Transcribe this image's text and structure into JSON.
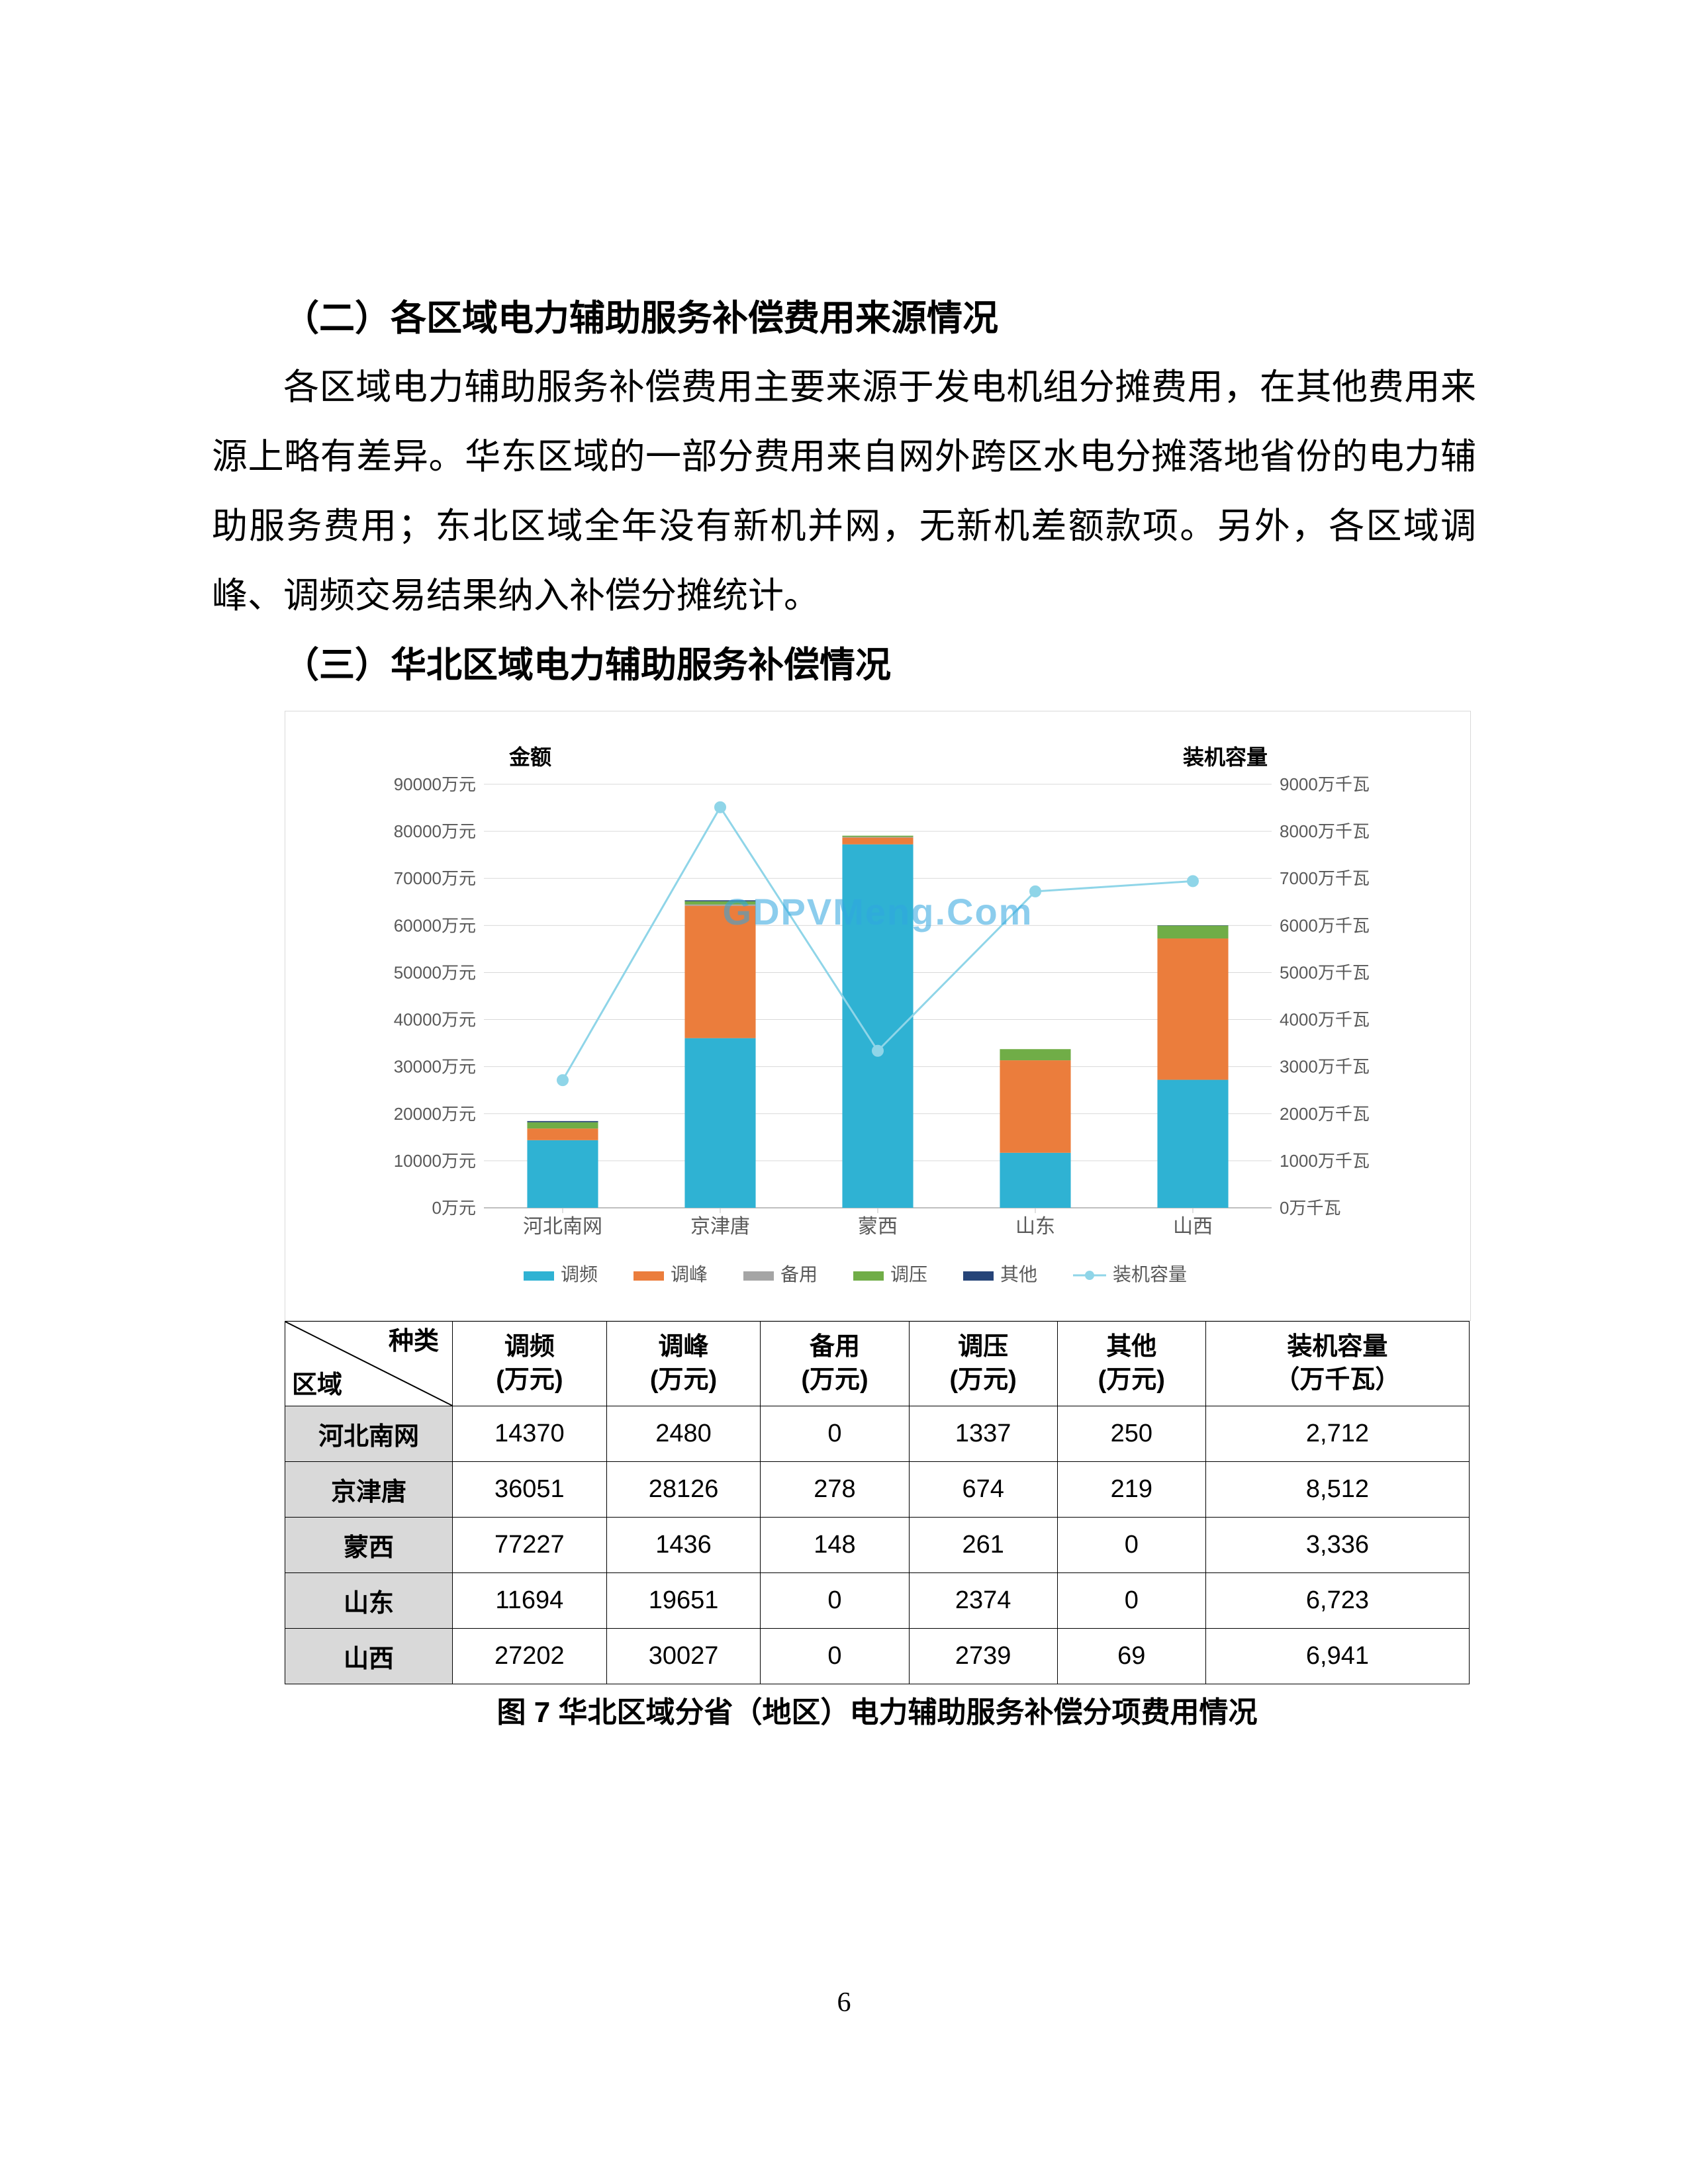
{
  "page": {
    "number": "6"
  },
  "headings": {
    "h2": "（二）各区域电力辅助服务补偿费用来源情况",
    "h3": "（三）华北区域电力辅助服务补偿情况"
  },
  "para": "各区域电力辅助服务补偿费用主要来源于发电机组分摊费用，在其他费用来源上略有差异。华东区域的一部分费用来自网外跨区水电分摊落地省份的电力辅助服务费用；东北区域全年没有新机并网，无新机差额款项。另外，各区域调峰、调频交易结果纳入补偿分摊统计。",
  "watermark": "GDPVMeng.Com",
  "chart": {
    "type": "stacked-bar-with-line",
    "left_axis_title": "金额",
    "right_axis_title": "装机容量",
    "left_axis": {
      "min": 0,
      "max": 90000,
      "step": 10000,
      "unit": "万元",
      "ticks": [
        "0万元",
        "10000万元",
        "20000万元",
        "30000万元",
        "40000万元",
        "50000万元",
        "60000万元",
        "70000万元",
        "80000万元",
        "90000万元"
      ]
    },
    "right_axis": {
      "min": 0,
      "max": 9000,
      "step": 1000,
      "unit": "万千瓦",
      "ticks": [
        "0万千瓦",
        "1000万千瓦",
        "2000万千瓦",
        "3000万千瓦",
        "4000万千瓦",
        "5000万千瓦",
        "6000万千瓦",
        "7000万千瓦",
        "8000万千瓦",
        "9000万千瓦"
      ]
    },
    "categories": [
      "河北南网",
      "京津唐",
      "蒙西",
      "山东",
      "山西"
    ],
    "series": [
      {
        "key": "tiaoP",
        "name": "调频",
        "color": "#2fb2d3"
      },
      {
        "key": "tiaoF",
        "name": "调峰",
        "color": "#eb7d3c"
      },
      {
        "key": "beiY",
        "name": "备用",
        "color": "#a5a5a5"
      },
      {
        "key": "tiaoY",
        "name": "调压",
        "color": "#70ad47"
      },
      {
        "key": "qita",
        "name": "其他",
        "color": "#264478"
      }
    ],
    "line_series": {
      "name": "装机容量",
      "color": "#8fd5e8",
      "marker_color": "#8fd5e8"
    },
    "bars": {
      "河北南网": {
        "tiaoP": 14370,
        "tiaoF": 2480,
        "beiY": 0,
        "tiaoY": 1337,
        "qita": 250
      },
      "京津唐": {
        "tiaoP": 36051,
        "tiaoF": 28126,
        "beiY": 278,
        "tiaoY": 674,
        "qita": 219
      },
      "蒙西": {
        "tiaoP": 77227,
        "tiaoF": 1436,
        "beiY": 148,
        "tiaoY": 261,
        "qita": 0
      },
      "山东": {
        "tiaoP": 11694,
        "tiaoF": 19651,
        "beiY": 0,
        "tiaoY": 2374,
        "qita": 0
      },
      "山西": {
        "tiaoP": 27202,
        "tiaoF": 30027,
        "beiY": 0,
        "tiaoY": 2739,
        "qita": 69
      }
    },
    "line_values": [
      2712,
      8512,
      3336,
      6723,
      6941
    ],
    "gridline_color": "#d9d9d9",
    "axis_color": "#bfbfbf",
    "axis_text_color": "#595959",
    "tick_font_size": 26,
    "legend_font_size": 28,
    "title_font_size": 32,
    "bar_width_ratio": 0.45
  },
  "table": {
    "diag_top": "种类",
    "diag_bottom": "区域",
    "columns": [
      "调频（万元）",
      "调峰（万元）",
      "备用（万元）",
      "调压（万元）",
      "其他（万元）",
      "装机容量（万千瓦）"
    ],
    "col_top": [
      "调频",
      "调峰",
      "备用",
      "调压",
      "其他",
      "装机容量"
    ],
    "col_bottom": [
      "(万元)",
      "(万元)",
      "(万元)",
      "(万元)",
      "(万元)",
      "（万千瓦）"
    ],
    "rows": [
      {
        "region": "河北南网",
        "cells": [
          "14370",
          "2480",
          "0",
          "1337",
          "250",
          "2,712"
        ]
      },
      {
        "region": "京津唐",
        "cells": [
          "36051",
          "28126",
          "278",
          "674",
          "219",
          "8,512"
        ]
      },
      {
        "region": "蒙西",
        "cells": [
          "77227",
          "1436",
          "148",
          "261",
          "0",
          "3,336"
        ]
      },
      {
        "region": "山东",
        "cells": [
          "11694",
          "19651",
          "0",
          "2374",
          "0",
          "6,723"
        ]
      },
      {
        "region": "山西",
        "cells": [
          "27202",
          "30027",
          "0",
          "2739",
          "69",
          "6,941"
        ]
      }
    ]
  },
  "caption": "图 7  华北区域分省（地区）电力辅助服务补偿分项费用情况"
}
